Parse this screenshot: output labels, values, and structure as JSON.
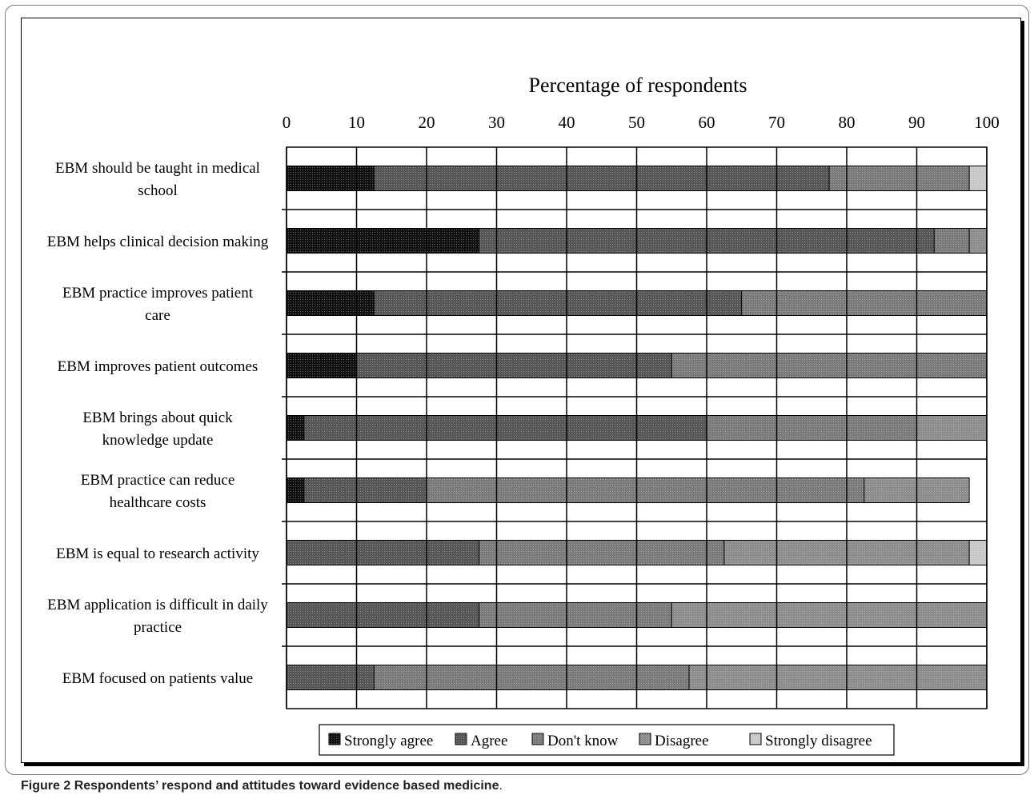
{
  "caption": {
    "figure_label": "Figure 2",
    "title": "Respondents’ respond and attitudes toward evidence based medicine",
    "end": "."
  },
  "chart_data": {
    "type": "bar",
    "orientation": "horizontal",
    "stacked": true,
    "title": "Percentage of respondents",
    "xlabel": "Percentage of respondents",
    "xlim": [
      0,
      100
    ],
    "xticks": [
      0,
      10,
      20,
      30,
      40,
      50,
      60,
      70,
      80,
      90,
      100
    ],
    "grid": true,
    "legend_position": "bottom",
    "categories": [
      [
        "EBM should be taught in medical",
        "school"
      ],
      [
        "EBM helps clinical decision making"
      ],
      [
        "EBM practice improves patient",
        "care"
      ],
      [
        "EBM improves patient outcomes"
      ],
      [
        "EBM brings about quick",
        "knowledge update"
      ],
      [
        "EBM practice can reduce",
        "healthcare costs"
      ],
      [
        "EBM is equal to research activity"
      ],
      [
        "EBM application is difficult in daily",
        "practice"
      ],
      [
        "EBM focused on patients value"
      ]
    ],
    "series": [
      {
        "name": "Strongly agree",
        "color": "#111111",
        "values": [
          12.5,
          27.5,
          12.5,
          10,
          2.5,
          2.5,
          0,
          0,
          0
        ]
      },
      {
        "name": "Agree",
        "color": "#555555",
        "values": [
          65,
          65,
          52.5,
          45,
          57.5,
          17.5,
          27.5,
          27.5,
          12.5
        ]
      },
      {
        "name": "Don't know",
        "color": "#7a7a7a",
        "values": [
          20,
          5,
          35,
          45,
          30,
          62.5,
          35,
          27.5,
          45
        ]
      },
      {
        "name": "Disagree",
        "color": "#8c8c8c",
        "values": [
          0,
          2.5,
          0,
          0,
          10,
          15,
          35,
          45,
          42.5
        ]
      },
      {
        "name": "Strongly disagree",
        "color": "#c8c8c8",
        "values": [
          2.5,
          0,
          0,
          0,
          0,
          0,
          2.5,
          0,
          0
        ]
      }
    ]
  }
}
